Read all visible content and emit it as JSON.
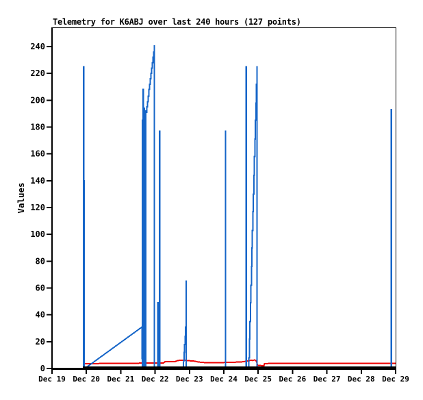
{
  "chart_data": {
    "type": "line",
    "title": "Telemetry for K6ABJ over last 240 hours (127 points)",
    "ylabel": "Values",
    "x_unit": "days_since_Dec_19",
    "x_tick_labels": [
      "Dec 19",
      "Dec 20",
      "Dec 21",
      "Dec 22",
      "Dec 23",
      "Dec 24",
      "Dec 25",
      "Dec 26",
      "Dec 27",
      "Dec 28",
      "Dec 29"
    ],
    "y_ticks": [
      0,
      20,
      40,
      60,
      80,
      100,
      120,
      140,
      160,
      180,
      200,
      220,
      240
    ],
    "ylim": [
      0,
      254
    ],
    "xlim_days": [
      0,
      10
    ],
    "grid": false,
    "legend": false,
    "colors": {
      "blue": "#1565c8",
      "red": "#ee0000",
      "black": "#000000"
    },
    "series": [
      {
        "name": "red",
        "color": "#ee0000",
        "width": 2,
        "points": [
          [
            0.892,
            3.6
          ],
          [
            1.673,
            3.8
          ],
          [
            2.669,
            4.0
          ],
          [
            3.247,
            4.2
          ],
          [
            3.287,
            5.0
          ],
          [
            3.586,
            5.2
          ],
          [
            3.665,
            6.0
          ],
          [
            3.845,
            6.2
          ],
          [
            3.944,
            5.8
          ],
          [
            4.124,
            5.6
          ],
          [
            4.263,
            4.8
          ],
          [
            4.462,
            4.4
          ],
          [
            4.861,
            4.4
          ],
          [
            5.259,
            4.6
          ],
          [
            5.558,
            5.0
          ],
          [
            5.697,
            5.6
          ],
          [
            5.777,
            6.2
          ],
          [
            5.837,
            6.0
          ],
          [
            5.896,
            6.4
          ],
          [
            5.946,
            5.6
          ],
          [
            5.986,
            2.4
          ],
          [
            6.165,
            2.0
          ],
          [
            6.185,
            3.6
          ],
          [
            6.355,
            3.8
          ],
          [
            10.0,
            3.8
          ]
        ]
      },
      {
        "name": "blue",
        "color": "#1565c8",
        "width": 2,
        "points": [
          [
            0.916,
            0
          ],
          [
            0.916,
            225
          ],
          [
            0.924,
            225
          ],
          [
            0.924,
            140
          ],
          [
            0.932,
            140
          ],
          [
            0.932,
            0
          ],
          [
            0.954,
            0
          ],
          [
            2.622,
            31
          ],
          [
            2.626,
            0
          ],
          [
            2.626,
            185
          ],
          [
            2.632,
            185
          ],
          [
            2.632,
            0
          ],
          [
            2.638,
            0
          ],
          [
            2.638,
            182
          ],
          [
            2.644,
            182
          ],
          [
            2.644,
            0
          ],
          [
            2.65,
            0
          ],
          [
            2.65,
            208
          ],
          [
            2.656,
            208
          ],
          [
            2.656,
            0
          ],
          [
            2.662,
            0
          ],
          [
            2.662,
            193
          ],
          [
            2.668,
            193
          ],
          [
            2.668,
            0
          ],
          [
            2.674,
            0
          ],
          [
            2.674,
            190
          ],
          [
            2.68,
            190
          ],
          [
            2.68,
            0
          ],
          [
            2.686,
            0
          ],
          [
            2.686,
            194
          ],
          [
            2.692,
            194
          ],
          [
            2.692,
            0
          ],
          [
            2.698,
            0
          ],
          [
            2.698,
            188
          ],
          [
            2.704,
            188
          ],
          [
            2.704,
            0
          ],
          [
            2.71,
            0
          ],
          [
            2.71,
            192
          ],
          [
            2.716,
            192
          ],
          [
            2.716,
            0
          ],
          [
            2.722,
            0
          ],
          [
            2.722,
            187
          ],
          [
            2.728,
            187
          ],
          [
            2.728,
            0
          ],
          [
            2.734,
            0
          ],
          [
            2.734,
            191
          ],
          [
            2.74,
            191
          ],
          [
            2.7595,
            191
          ],
          [
            2.7595,
            195
          ],
          [
            2.779,
            195
          ],
          [
            2.779,
            199
          ],
          [
            2.7985,
            199
          ],
          [
            2.7985,
            203
          ],
          [
            2.818,
            203
          ],
          [
            2.818,
            208
          ],
          [
            2.8375,
            208
          ],
          [
            2.8375,
            212
          ],
          [
            2.857,
            212
          ],
          [
            2.857,
            216
          ],
          [
            2.8765,
            216
          ],
          [
            2.8765,
            220
          ],
          [
            2.896,
            220
          ],
          [
            2.896,
            224
          ],
          [
            2.9155,
            224
          ],
          [
            2.9155,
            228
          ],
          [
            2.935,
            228
          ],
          [
            2.935,
            232
          ],
          [
            2.9545,
            232
          ],
          [
            2.9545,
            236
          ],
          [
            2.974,
            236
          ],
          [
            2.974,
            240.5
          ],
          [
            2.978,
            240.5
          ],
          [
            2.978,
            0
          ],
          [
            3.082,
            0
          ],
          [
            3.082,
            49
          ],
          [
            3.086,
            49
          ],
          [
            3.086,
            0
          ],
          [
            3.13,
            0
          ],
          [
            3.13,
            177
          ],
          [
            3.134,
            177
          ],
          [
            3.134,
            0
          ],
          [
            3.825,
            0
          ],
          [
            3.831,
            6
          ],
          [
            3.845,
            6
          ],
          [
            3.845,
            12
          ],
          [
            3.859,
            12
          ],
          [
            3.859,
            18
          ],
          [
            3.873,
            18
          ],
          [
            3.873,
            24
          ],
          [
            3.887,
            24
          ],
          [
            3.887,
            31
          ],
          [
            3.905,
            31
          ],
          [
            3.905,
            65
          ],
          [
            3.909,
            65
          ],
          [
            3.909,
            0
          ],
          [
            5.048,
            0
          ],
          [
            5.048,
            177
          ],
          [
            5.052,
            177
          ],
          [
            5.052,
            0
          ],
          [
            5.649,
            0
          ],
          [
            5.649,
            225
          ],
          [
            5.655,
            225
          ],
          [
            5.655,
            0
          ],
          [
            5.721,
            0
          ],
          [
            5.729,
            8
          ],
          [
            5.7436,
            8
          ],
          [
            5.7436,
            22
          ],
          [
            5.7582,
            22
          ],
          [
            5.7582,
            35
          ],
          [
            5.7728,
            35
          ],
          [
            5.7728,
            49
          ],
          [
            5.7874,
            49
          ],
          [
            5.7874,
            62
          ],
          [
            5.802,
            62
          ],
          [
            5.802,
            76
          ],
          [
            5.8166,
            76
          ],
          [
            5.8166,
            90
          ],
          [
            5.8312,
            90
          ],
          [
            5.8312,
            103
          ],
          [
            5.8458,
            103
          ],
          [
            5.8458,
            117
          ],
          [
            5.8604,
            117
          ],
          [
            5.8604,
            130
          ],
          [
            5.875,
            130
          ],
          [
            5.875,
            144
          ],
          [
            5.8896,
            144
          ],
          [
            5.8896,
            158
          ],
          [
            5.9042,
            158
          ],
          [
            5.9042,
            171
          ],
          [
            5.9188,
            171
          ],
          [
            5.9188,
            185
          ],
          [
            5.9334,
            185
          ],
          [
            5.9334,
            198
          ],
          [
            5.948,
            198
          ],
          [
            5.948,
            212
          ],
          [
            5.9626,
            212
          ],
          [
            5.9626,
            225
          ],
          [
            5.97,
            225
          ],
          [
            5.97,
            0
          ],
          [
            9.875,
            0
          ],
          [
            9.875,
            193
          ],
          [
            9.879,
            193
          ],
          [
            9.879,
            0
          ],
          [
            10.0,
            0
          ]
        ]
      },
      {
        "name": "black-baseline",
        "color": "#000000",
        "width": 2.6,
        "points": [
          [
            0.896,
            0.9
          ],
          [
            10.0,
            0.9
          ]
        ]
      }
    ]
  }
}
